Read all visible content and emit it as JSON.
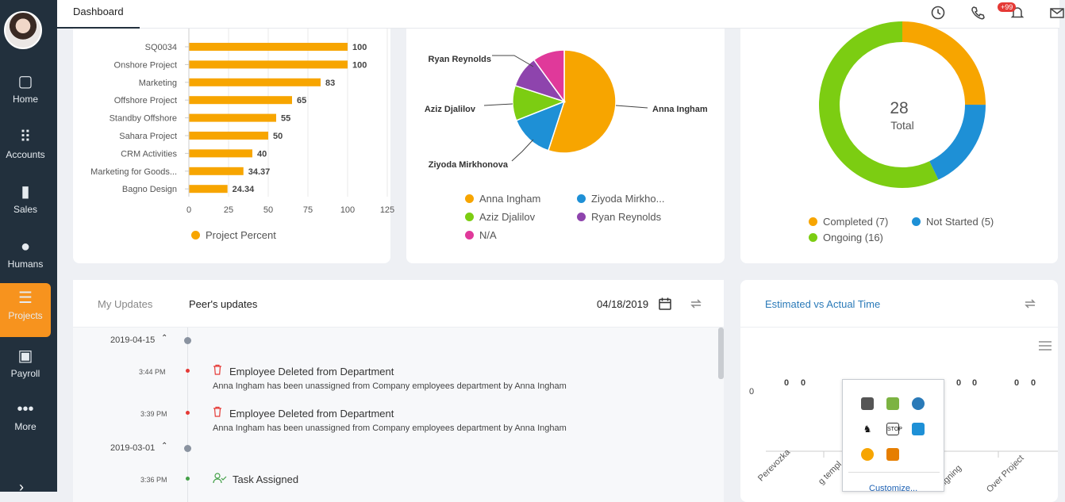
{
  "nav": {
    "items": [
      {
        "label": "Home"
      },
      {
        "label": "Accounts"
      },
      {
        "label": "Sales"
      },
      {
        "label": "Humans"
      },
      {
        "label": "Projects"
      },
      {
        "label": "Payroll"
      },
      {
        "label": "More"
      }
    ]
  },
  "topbar": {
    "tab": "Dashboard",
    "notification_count": "+99"
  },
  "bar_chart": {
    "chart_data": {
      "type": "bar",
      "orientation": "horizontal",
      "categories": [
        "SQ0034",
        "Onshore Project",
        "Marketing",
        "Offshore Project",
        "Standby Offshore",
        "Sahara Project",
        "CRM Activities",
        "Marketing for Goods...",
        "Bagno Design"
      ],
      "values": [
        100,
        100,
        83,
        65,
        55,
        50,
        40,
        34.37,
        24.34
      ],
      "value_labels": [
        "100",
        "100",
        "83",
        "65",
        "55",
        "50",
        "40",
        "34.37",
        "24.34"
      ],
      "xticks": [
        "0",
        "25",
        "50",
        "75",
        "100",
        "125"
      ],
      "xlim": [
        0,
        125
      ],
      "color": "#f7a500",
      "series_name": "Project Percent",
      "grid": "vertical"
    }
  },
  "pie_chart": {
    "chart_data": {
      "type": "pie",
      "slices": [
        {
          "name": "Anna Ingham",
          "value": 55,
          "color": "#f7a500"
        },
        {
          "name": "Ziyoda Mirkhonova",
          "value": 14,
          "color": "#1e90d6"
        },
        {
          "name": "Aziz Djalilov",
          "value": 11,
          "color": "#7ccd12"
        },
        {
          "name": "Ryan Reynolds",
          "value": 10,
          "color": "#8e44ad"
        },
        {
          "name": "N/A",
          "value": 10,
          "color": "#e0399a"
        }
      ],
      "outer_labels": [
        "Ryan Reynolds",
        "Aziz Djalilov",
        "Ziyoda Mirkhonova",
        "Anna Ingham"
      ],
      "legend": [
        "Anna Ingham",
        "Ziyoda Mirkho...",
        "Aziz Djalilov",
        "Ryan Reynolds",
        "N/A"
      ]
    }
  },
  "donut_chart": {
    "chart_data": {
      "type": "pie",
      "subtype": "donut",
      "total": "28",
      "total_label": "Total",
      "slices": [
        {
          "name": "Completed",
          "value": 7,
          "color": "#f7a500"
        },
        {
          "name": "Not Started",
          "value": 5,
          "color": "#1e90d6"
        },
        {
          "name": "Ongoing",
          "value": 16,
          "color": "#7ccd12"
        }
      ],
      "legend": [
        "Completed (7)",
        "Not Started (5)",
        "Ongoing (16)"
      ]
    }
  },
  "updates": {
    "tabs": [
      "My Updates",
      "Peer's updates"
    ],
    "date": "04/18/2019",
    "groups": [
      {
        "date": "2019-04-15",
        "items": [
          {
            "time": "3:44 PM",
            "title": "Employee Deleted from Department",
            "desc": "Anna Ingham has been unassigned from Company employees department by Anna Ingham"
          },
          {
            "time": "3:39 PM",
            "title": "Employee Deleted from Department",
            "desc": "Anna Ingham has been unassigned from Company employees department by Anna Ingham"
          }
        ]
      },
      {
        "date": "2019-03-01",
        "items": [
          {
            "time": "3:36 PM",
            "title": "Task Assigned"
          }
        ]
      }
    ]
  },
  "estimated": {
    "title": "Estimated vs Actual Time",
    "y_tick": "0",
    "value_labels": [
      "0",
      "0",
      "0",
      "0",
      "0",
      "0"
    ],
    "x_labels": [
      "Perevozka",
      "g templ",
      "signing",
      "Over Project"
    ],
    "popup_link": "Customize..."
  },
  "colors": {
    "sidebar": "#22303d",
    "accent": "#f7931e",
    "link": "#2a7ab8"
  }
}
